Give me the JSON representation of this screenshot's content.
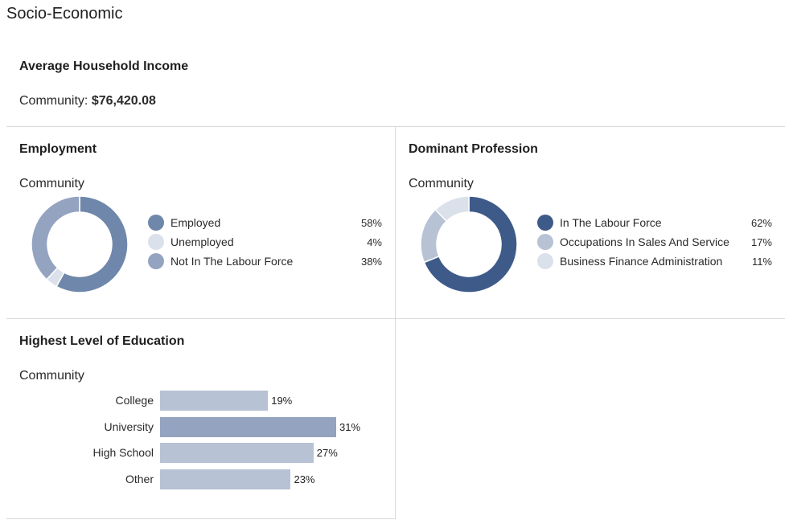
{
  "page_title": "Socio-Economic",
  "income": {
    "title": "Average Household Income",
    "label": "Community:",
    "value": "$76,420.08"
  },
  "employment": {
    "title": "Employment",
    "subtitle": "Community",
    "items": [
      {
        "label": "Employed",
        "value": 58,
        "pct_text": "58%",
        "color": "#6f87aa"
      },
      {
        "label": "Unemployed",
        "value": 4,
        "pct_text": "4%",
        "color": "#dbe1ea"
      },
      {
        "label": "Not In The Labour Force",
        "value": 38,
        "pct_text": "38%",
        "color": "#93a3c0"
      }
    ]
  },
  "profession": {
    "title": "Dominant Profession",
    "subtitle": "Community",
    "items": [
      {
        "label": "In The Labour Force",
        "value": 62,
        "pct_text": "62%",
        "color": "#3e5a89"
      },
      {
        "label": "Occupations In Sales And Service",
        "value": 17,
        "pct_text": "17%",
        "color": "#b7c2d4"
      },
      {
        "label": "Business Finance Administration",
        "value": 11,
        "pct_text": "11%",
        "color": "#dbe1ea"
      }
    ]
  },
  "education": {
    "title": "Highest Level of Education",
    "subtitle": "Community"
  },
  "chart_data": {
    "type": "bar",
    "orientation": "horizontal",
    "categories": [
      "College",
      "University",
      "High School",
      "Other"
    ],
    "values": [
      19,
      31,
      27,
      23
    ],
    "value_labels": [
      "19%",
      "31%",
      "27%",
      "23%"
    ],
    "colors": [
      "#b7c2d4",
      "#93a3c0",
      "#b7c2d4",
      "#b7c2d4"
    ]
  }
}
